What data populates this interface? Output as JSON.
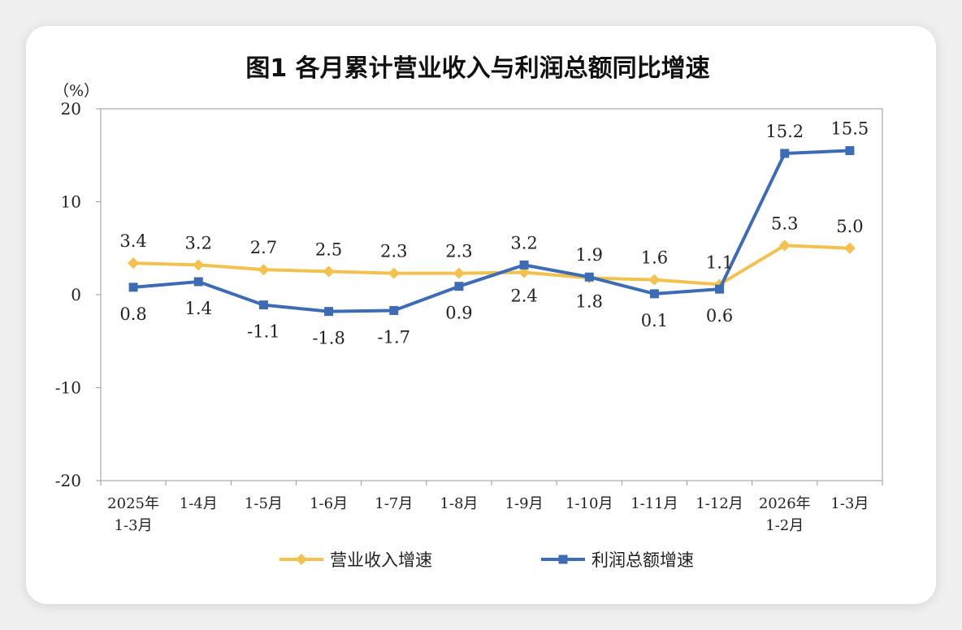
{
  "chart_data": {
    "type": "line",
    "title": "图1  各月累计营业收入与利润总额同比增速",
    "unit_label": "（%）",
    "categories": [
      [
        "2025年",
        "1-3月"
      ],
      [
        "1-4月"
      ],
      [
        "1-5月"
      ],
      [
        "1-6月"
      ],
      [
        "1-7月"
      ],
      [
        "1-8月"
      ],
      [
        "1-9月"
      ],
      [
        "1-10月"
      ],
      [
        "1-11月"
      ],
      [
        "1-12月"
      ],
      [
        "2026年",
        "1-2月"
      ],
      [
        "1-3月"
      ]
    ],
    "yticks": [
      "20",
      "10",
      "0",
      "-10",
      "-20"
    ],
    "ylim": [
      -20,
      20
    ],
    "grid": false,
    "legend_position": "bottom",
    "series": [
      {
        "name": "营业收入增速",
        "color": "#f2c14e",
        "marker": "diamond",
        "values": [
          3.4,
          3.2,
          2.7,
          2.5,
          2.3,
          2.3,
          2.4,
          1.8,
          1.6,
          1.1,
          5.3,
          5.0
        ],
        "labels": [
          "3.4",
          "3.2",
          "2.7",
          "2.5",
          "2.3",
          "2.3",
          "2.4",
          "1.8",
          "1.6",
          "1.1",
          "5.3",
          "5.0"
        ]
      },
      {
        "name": "利润总额增速",
        "color": "#3d6cb5",
        "marker": "square",
        "values": [
          0.8,
          1.4,
          -1.1,
          -1.8,
          -1.7,
          0.9,
          3.2,
          1.9,
          0.1,
          0.6,
          15.2,
          15.5
        ],
        "labels": [
          "0.8",
          "1.4",
          "-1.1",
          "-1.8",
          "-1.7",
          "0.9",
          "3.2",
          "1.9",
          "0.1",
          "0.6",
          "15.2",
          "15.5"
        ]
      }
    ]
  }
}
